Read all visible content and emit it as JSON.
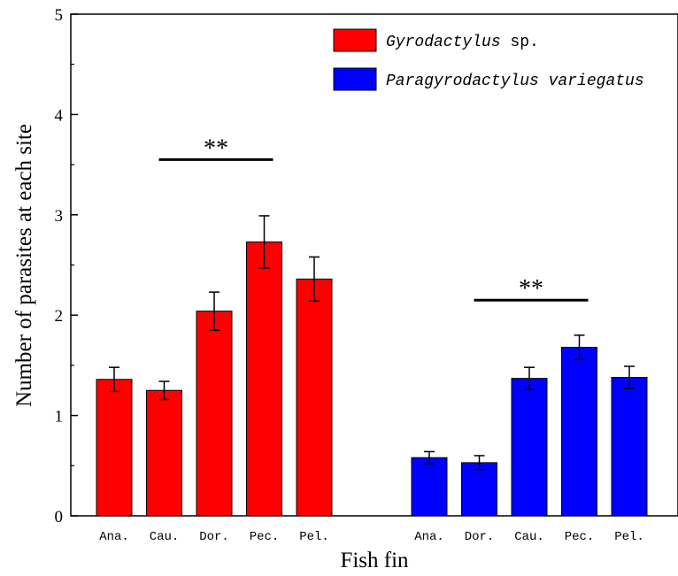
{
  "chart_data": {
    "type": "bar",
    "title": "",
    "xlabel": "Fish fin",
    "ylabel": "Number of parasites at each site",
    "ylim": [
      0,
      5
    ],
    "yticks": [
      "0",
      "1",
      "2",
      "3",
      "4",
      "5"
    ],
    "grid": false,
    "legend_position": "top-right",
    "groups": [
      {
        "name": "Gyrodactylus sp.",
        "name_italic": "Gyrodactylus",
        "name_suffix": " sp.",
        "color": "#ff0000",
        "categories": [
          "Ana.",
          "Cau.",
          "Dor.",
          "Pec.",
          "Pel."
        ],
        "values": [
          1.36,
          1.25,
          2.04,
          2.73,
          2.36
        ],
        "errors": [
          0.12,
          0.09,
          0.19,
          0.26,
          0.22
        ],
        "significance": {
          "label": "**",
          "from_index": 1,
          "to_index": 3,
          "y": 3.55
        }
      },
      {
        "name": "Paragyrodactylus variegatus",
        "name_italic": "Paragyrodactylus variegatus",
        "name_suffix": "",
        "color": "#0000ff",
        "categories": [
          "Ana.",
          "Dor.",
          "Cau.",
          "Pec.",
          "Pel."
        ],
        "values": [
          0.58,
          0.53,
          1.37,
          1.68,
          1.38
        ],
        "errors": [
          0.06,
          0.07,
          0.11,
          0.12,
          0.11
        ],
        "significance": {
          "label": "**",
          "from_index": 1,
          "to_index": 3,
          "y": 2.15
        }
      }
    ]
  }
}
